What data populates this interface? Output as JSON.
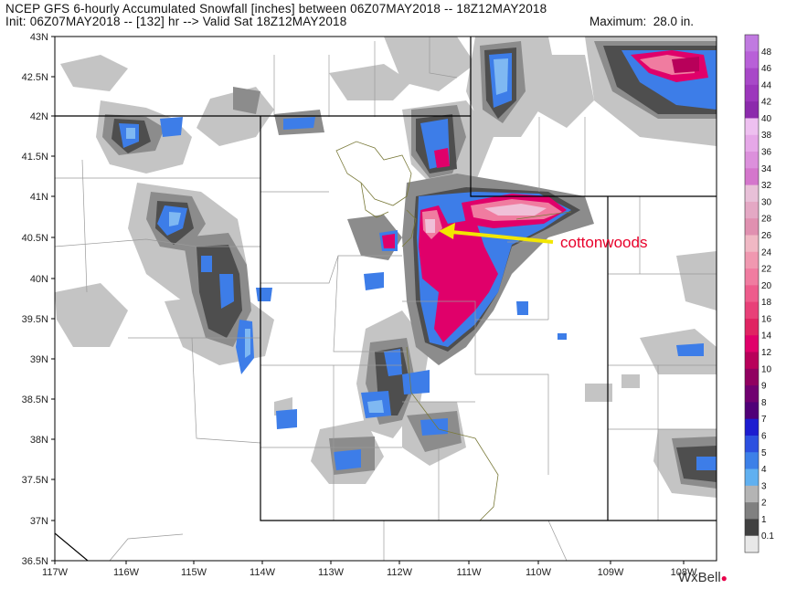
{
  "header": {
    "line1": "NCEP GFS 6-hourly Accumulated Snowfall [inches] between 06Z07MAY2018 -- 18Z12MAY2018",
    "line2": "Init: 06Z07MAY2018 -- [132] hr --> Valid Sat 18Z12MAY2018",
    "maximum": "Maximum:  28.0 in."
  },
  "axes": {
    "lat_labels": [
      "43N",
      "42.5N",
      "42N",
      "41.5N",
      "41N",
      "40.5N",
      "40N",
      "39.5N",
      "39N",
      "38.5N",
      "38N",
      "37.5N",
      "37N",
      "36.5N"
    ],
    "lon_labels": [
      "117W",
      "116W",
      "115W",
      "114W",
      "113W",
      "112W",
      "111W",
      "110W",
      "109W",
      "108W"
    ]
  },
  "colorbar": {
    "labels": [
      "48",
      "46",
      "44",
      "42",
      "40",
      "38",
      "36",
      "34",
      "32",
      "30",
      "28",
      "26",
      "24",
      "22",
      "20",
      "18",
      "16",
      "14",
      "12",
      "10",
      "9",
      "8",
      "7",
      "6",
      "5",
      "4",
      "3",
      "2",
      "1",
      "0.1"
    ],
    "colors": [
      "#c07ae0",
      "#b860d8",
      "#a848c8",
      "#9c36bc",
      "#8c2aac",
      "#eec0f0",
      "#e6a8e8",
      "#dc90dc",
      "#d476cc",
      "#e8c0d8",
      "#e4a8c4",
      "#e090b0",
      "#f0b8c4",
      "#f098b0",
      "#f07ca0",
      "#ee5c8c",
      "#e84078",
      "#e02462",
      "#e0006a",
      "#b8005a",
      "#900060",
      "#700070",
      "#500078",
      "#1c1cd0",
      "#2c50e0",
      "#3c80e8",
      "#60b0f0",
      "#b4b4b4",
      "#808080",
      "#404040",
      "#e8e8e8"
    ]
  },
  "annotation": {
    "text": "cottonwoods"
  },
  "brand": {
    "name": "WxBell"
  }
}
